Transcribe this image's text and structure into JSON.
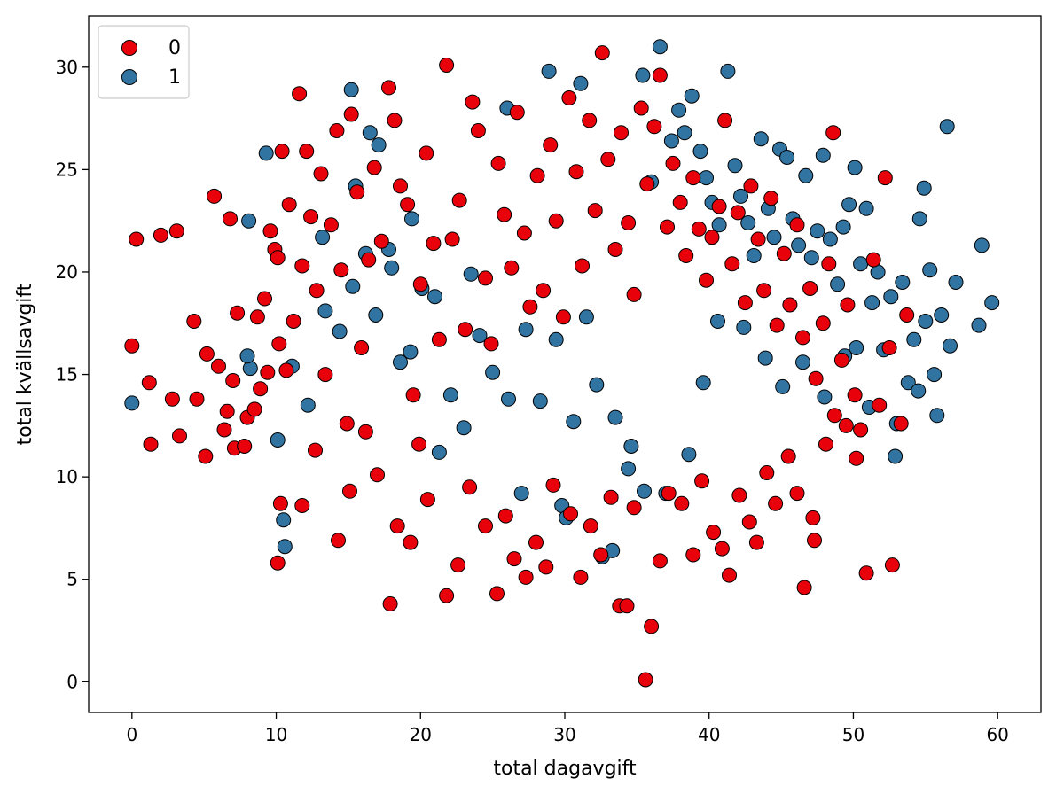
{
  "chart_data": {
    "type": "scatter",
    "title": "",
    "xlabel": "total dagavgift",
    "ylabel": "total kvällsavgift",
    "xlim": [
      -3,
      63
    ],
    "ylim": [
      -1.5,
      32.5
    ],
    "xticks": [
      0,
      10,
      20,
      30,
      40,
      50,
      60
    ],
    "yticks": [
      0,
      5,
      10,
      15,
      20,
      25,
      30
    ],
    "legend_position": "upper-left",
    "grid": false,
    "series": [
      {
        "name": "0",
        "color": "#e8000b",
        "points": [
          [
            0.0,
            16.4
          ],
          [
            0.3,
            21.6
          ],
          [
            1.2,
            14.6
          ],
          [
            1.3,
            11.6
          ],
          [
            2.0,
            21.8
          ],
          [
            2.8,
            13.8
          ],
          [
            3.1,
            22.0
          ],
          [
            3.3,
            12.0
          ],
          [
            4.3,
            17.6
          ],
          [
            4.5,
            13.8
          ],
          [
            5.1,
            11.0
          ],
          [
            5.2,
            16.0
          ],
          [
            5.7,
            23.7
          ],
          [
            6.0,
            15.4
          ],
          [
            6.4,
            12.3
          ],
          [
            6.6,
            13.2
          ],
          [
            6.8,
            22.6
          ],
          [
            7.0,
            14.7
          ],
          [
            7.1,
            11.4
          ],
          [
            7.3,
            18.0
          ],
          [
            7.8,
            11.5
          ],
          [
            8.0,
            12.9
          ],
          [
            8.5,
            13.3
          ],
          [
            8.7,
            17.8
          ],
          [
            8.9,
            14.3
          ],
          [
            9.2,
            18.7
          ],
          [
            9.4,
            15.1
          ],
          [
            9.6,
            22.0
          ],
          [
            9.9,
            21.1
          ],
          [
            10.1,
            20.7
          ],
          [
            10.2,
            16.5
          ],
          [
            10.4,
            25.9
          ],
          [
            10.7,
            15.2
          ],
          [
            10.9,
            23.3
          ],
          [
            11.2,
            17.6
          ],
          [
            11.6,
            28.7
          ],
          [
            11.8,
            20.3
          ],
          [
            12.1,
            25.9
          ],
          [
            12.4,
            22.7
          ],
          [
            12.8,
            19.1
          ],
          [
            13.1,
            24.8
          ],
          [
            13.4,
            15.0
          ],
          [
            13.8,
            22.3
          ],
          [
            14.2,
            26.9
          ],
          [
            14.5,
            20.1
          ],
          [
            14.9,
            12.6
          ],
          [
            15.2,
            27.7
          ],
          [
            15.6,
            23.9
          ],
          [
            15.9,
            16.3
          ],
          [
            16.4,
            20.6
          ],
          [
            16.8,
            25.1
          ],
          [
            17.3,
            21.5
          ],
          [
            17.8,
            29.0
          ],
          [
            18.2,
            27.4
          ],
          [
            18.6,
            24.2
          ],
          [
            19.1,
            23.3
          ],
          [
            19.5,
            14.0
          ],
          [
            20.0,
            19.4
          ],
          [
            20.4,
            25.8
          ],
          [
            20.9,
            21.4
          ],
          [
            21.3,
            16.7
          ],
          [
            21.8,
            30.1
          ],
          [
            22.2,
            21.6
          ],
          [
            22.7,
            23.5
          ],
          [
            23.1,
            17.2
          ],
          [
            23.6,
            28.3
          ],
          [
            24.0,
            26.9
          ],
          [
            24.5,
            19.7
          ],
          [
            24.9,
            16.5
          ],
          [
            25.4,
            25.3
          ],
          [
            25.8,
            22.8
          ],
          [
            26.3,
            20.2
          ],
          [
            26.7,
            27.8
          ],
          [
            27.2,
            21.9
          ],
          [
            27.6,
            18.3
          ],
          [
            28.1,
            24.7
          ],
          [
            28.5,
            19.1
          ],
          [
            29.0,
            26.2
          ],
          [
            29.4,
            22.5
          ],
          [
            29.9,
            17.8
          ],
          [
            30.3,
            28.5
          ],
          [
            30.8,
            24.9
          ],
          [
            31.2,
            20.3
          ],
          [
            31.7,
            27.4
          ],
          [
            32.1,
            23.0
          ],
          [
            32.6,
            30.7
          ],
          [
            33.0,
            25.5
          ],
          [
            33.5,
            21.1
          ],
          [
            33.9,
            26.8
          ],
          [
            34.4,
            22.4
          ],
          [
            34.8,
            18.9
          ],
          [
            35.3,
            28.0
          ],
          [
            35.7,
            24.3
          ],
          [
            36.2,
            27.1
          ],
          [
            36.6,
            29.6
          ],
          [
            37.1,
            22.2
          ],
          [
            37.5,
            25.3
          ],
          [
            38.0,
            23.4
          ],
          [
            38.4,
            20.8
          ],
          [
            38.9,
            24.6
          ],
          [
            39.3,
            22.1
          ],
          [
            39.8,
            19.6
          ],
          [
            40.2,
            21.7
          ],
          [
            40.7,
            23.2
          ],
          [
            41.1,
            27.4
          ],
          [
            41.6,
            20.4
          ],
          [
            42.0,
            22.9
          ],
          [
            42.5,
            18.5
          ],
          [
            42.9,
            24.2
          ],
          [
            43.4,
            21.6
          ],
          [
            43.8,
            19.1
          ],
          [
            44.3,
            23.6
          ],
          [
            44.7,
            17.4
          ],
          [
            45.2,
            20.9
          ],
          [
            45.6,
            18.4
          ],
          [
            46.1,
            22.3
          ],
          [
            46.5,
            16.8
          ],
          [
            47.0,
            19.2
          ],
          [
            47.4,
            14.8
          ],
          [
            47.9,
            17.5
          ],
          [
            48.3,
            20.4
          ],
          [
            48.6,
            26.8
          ],
          [
            49.2,
            15.7
          ],
          [
            49.6,
            18.4
          ],
          [
            50.1,
            14.0
          ],
          [
            50.5,
            12.3
          ],
          [
            50.9,
            5.3
          ],
          [
            51.4,
            20.6
          ],
          [
            51.8,
            13.5
          ],
          [
            52.2,
            24.6
          ],
          [
            52.5,
            16.3
          ],
          [
            52.7,
            5.7
          ],
          [
            53.3,
            12.6
          ],
          [
            53.7,
            17.9
          ],
          [
            10.1,
            5.8
          ],
          [
            10.3,
            8.7
          ],
          [
            11.8,
            8.6
          ],
          [
            12.7,
            11.3
          ],
          [
            14.3,
            6.9
          ],
          [
            15.1,
            9.3
          ],
          [
            16.2,
            12.2
          ],
          [
            17.0,
            10.1
          ],
          [
            17.9,
            3.8
          ],
          [
            18.4,
            7.6
          ],
          [
            19.3,
            6.8
          ],
          [
            19.9,
            11.6
          ],
          [
            20.5,
            8.9
          ],
          [
            21.8,
            4.2
          ],
          [
            22.6,
            5.7
          ],
          [
            23.4,
            9.5
          ],
          [
            24.5,
            7.6
          ],
          [
            25.3,
            4.3
          ],
          [
            25.9,
            8.1
          ],
          [
            26.5,
            6.0
          ],
          [
            27.3,
            5.1
          ],
          [
            28.0,
            6.8
          ],
          [
            28.7,
            5.6
          ],
          [
            29.2,
            9.6
          ],
          [
            30.4,
            8.2
          ],
          [
            31.1,
            5.1
          ],
          [
            31.8,
            7.6
          ],
          [
            32.5,
            6.2
          ],
          [
            33.2,
            9.0
          ],
          [
            33.8,
            3.7
          ],
          [
            34.3,
            3.7
          ],
          [
            34.8,
            8.5
          ],
          [
            35.6,
            0.1
          ],
          [
            36.0,
            2.7
          ],
          [
            36.6,
            5.9
          ],
          [
            37.2,
            9.2
          ],
          [
            38.1,
            8.7
          ],
          [
            38.9,
            6.2
          ],
          [
            39.5,
            9.8
          ],
          [
            40.3,
            7.3
          ],
          [
            40.9,
            6.5
          ],
          [
            41.4,
            5.2
          ],
          [
            42.1,
            9.1
          ],
          [
            42.8,
            7.8
          ],
          [
            43.3,
            6.8
          ],
          [
            44.0,
            10.2
          ],
          [
            44.6,
            8.7
          ],
          [
            45.5,
            11.0
          ],
          [
            46.1,
            9.2
          ],
          [
            46.6,
            4.6
          ],
          [
            47.2,
            8.0
          ],
          [
            47.3,
            6.9
          ],
          [
            48.1,
            11.6
          ],
          [
            48.7,
            13.0
          ],
          [
            49.5,
            12.5
          ],
          [
            50.2,
            10.9
          ]
        ]
      },
      {
        "name": "1",
        "color": "#3274a1",
        "points": [
          [
            0.0,
            13.6
          ],
          [
            8.1,
            22.5
          ],
          [
            8.2,
            15.3
          ],
          [
            8.0,
            15.9
          ],
          [
            9.3,
            25.8
          ],
          [
            10.1,
            11.8
          ],
          [
            10.5,
            7.9
          ],
          [
            10.6,
            6.6
          ],
          [
            11.1,
            15.4
          ],
          [
            12.2,
            13.5
          ],
          [
            13.2,
            21.7
          ],
          [
            15.2,
            28.9
          ],
          [
            15.5,
            24.2
          ],
          [
            16.5,
            26.8
          ],
          [
            17.1,
            26.2
          ],
          [
            18.0,
            20.2
          ],
          [
            19.4,
            22.6
          ],
          [
            21.3,
            11.2
          ],
          [
            23.5,
            19.9
          ],
          [
            26.0,
            28.0
          ],
          [
            27.0,
            9.2
          ],
          [
            28.9,
            29.8
          ],
          [
            29.8,
            8.6
          ],
          [
            30.1,
            8.0
          ],
          [
            31.1,
            29.2
          ],
          [
            32.6,
            6.1
          ],
          [
            33.3,
            6.4
          ],
          [
            34.6,
            11.5
          ],
          [
            35.4,
            29.6
          ],
          [
            36.0,
            24.4
          ],
          [
            36.6,
            31.0
          ],
          [
            37.4,
            26.4
          ],
          [
            37.9,
            27.9
          ],
          [
            38.3,
            26.8
          ],
          [
            38.8,
            28.6
          ],
          [
            39.4,
            25.9
          ],
          [
            39.8,
            24.6
          ],
          [
            40.2,
            23.4
          ],
          [
            40.7,
            22.3
          ],
          [
            41.3,
            29.8
          ],
          [
            41.8,
            25.2
          ],
          [
            42.2,
            23.7
          ],
          [
            42.7,
            22.4
          ],
          [
            43.1,
            20.8
          ],
          [
            43.6,
            26.5
          ],
          [
            44.1,
            23.1
          ],
          [
            44.5,
            21.7
          ],
          [
            44.9,
            26.0
          ],
          [
            45.4,
            25.6
          ],
          [
            45.8,
            22.6
          ],
          [
            46.2,
            21.3
          ],
          [
            46.7,
            24.7
          ],
          [
            47.1,
            20.7
          ],
          [
            47.5,
            22.0
          ],
          [
            47.9,
            25.7
          ],
          [
            48.4,
            21.6
          ],
          [
            48.9,
            19.4
          ],
          [
            49.3,
            22.2
          ],
          [
            49.7,
            23.3
          ],
          [
            50.1,
            25.1
          ],
          [
            50.5,
            20.4
          ],
          [
            50.9,
            23.1
          ],
          [
            51.3,
            18.5
          ],
          [
            51.7,
            20.0
          ],
          [
            52.1,
            16.2
          ],
          [
            52.6,
            18.8
          ],
          [
            53.0,
            12.6
          ],
          [
            53.4,
            19.5
          ],
          [
            53.8,
            14.6
          ],
          [
            54.2,
            16.7
          ],
          [
            54.6,
            22.6
          ],
          [
            54.9,
            24.1
          ],
          [
            55.0,
            17.6
          ],
          [
            55.3,
            20.1
          ],
          [
            55.6,
            15.0
          ],
          [
            55.8,
            13.0
          ],
          [
            56.1,
            17.9
          ],
          [
            56.5,
            27.1
          ],
          [
            56.7,
            16.4
          ],
          [
            57.1,
            19.5
          ],
          [
            58.7,
            17.4
          ],
          [
            58.9,
            21.3
          ],
          [
            59.6,
            18.5
          ],
          [
            49.4,
            15.9
          ],
          [
            50.2,
            16.3
          ],
          [
            51.1,
            13.4
          ],
          [
            52.9,
            11.0
          ],
          [
            54.5,
            14.2
          ],
          [
            48.0,
            13.9
          ],
          [
            46.5,
            15.6
          ],
          [
            45.1,
            14.4
          ],
          [
            43.9,
            15.8
          ],
          [
            42.4,
            17.3
          ],
          [
            40.6,
            17.6
          ],
          [
            39.6,
            14.6
          ],
          [
            38.6,
            11.1
          ],
          [
            37.0,
            9.2
          ],
          [
            35.5,
            9.3
          ],
          [
            34.4,
            10.4
          ],
          [
            33.5,
            12.9
          ],
          [
            32.2,
            14.5
          ],
          [
            31.5,
            17.8
          ],
          [
            30.6,
            12.7
          ],
          [
            29.4,
            16.7
          ],
          [
            28.3,
            13.7
          ],
          [
            27.3,
            17.2
          ],
          [
            26.1,
            13.8
          ],
          [
            25.0,
            15.1
          ],
          [
            24.1,
            16.9
          ],
          [
            23.0,
            12.4
          ],
          [
            22.1,
            14.0
          ],
          [
            21.0,
            18.8
          ],
          [
            20.1,
            19.2
          ],
          [
            19.3,
            16.1
          ],
          [
            18.6,
            15.6
          ],
          [
            17.8,
            21.1
          ],
          [
            16.9,
            17.9
          ],
          [
            16.2,
            20.9
          ],
          [
            15.3,
            19.3
          ],
          [
            14.4,
            17.1
          ],
          [
            13.4,
            18.1
          ]
        ]
      }
    ]
  }
}
